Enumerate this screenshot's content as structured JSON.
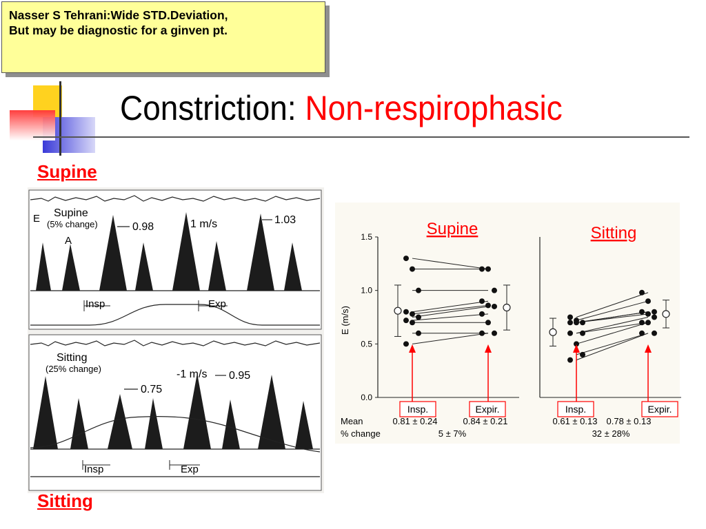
{
  "note": {
    "line1": "Nasser S Tehrani:Wide STD.Deviation,",
    "line2": "But may be diagnostic for a ginven pt."
  },
  "slide": {
    "title_main": "Constriction:",
    "title_accent": "Non-respirophasic",
    "label_top": "Supine",
    "label_bottom": "Sitting",
    "accent_color": "#ff0000"
  },
  "doppler_top": {
    "title": "Supine",
    "subtitle": "(5% change)",
    "wave_e": "E",
    "wave_a": "A",
    "label1": "0.98",
    "label2": "1 m/s",
    "label3": "1.03",
    "insp": "Insp",
    "exp": "Exp"
  },
  "doppler_bottom": {
    "title": "Sitting",
    "subtitle": "(25% change)",
    "label1": "0.75",
    "label2": "-1 m/s",
    "label3": "0.95",
    "insp": "Insp",
    "exp": "Exp"
  },
  "chart_data": {
    "type": "scatter",
    "ylabel": "E (m/s)",
    "ylim": [
      0,
      1.5
    ],
    "yticks": [
      "1.5",
      "1.0",
      "0.5",
      "0.0"
    ],
    "row_labels": [
      "Mean",
      "% change"
    ],
    "panels": [
      {
        "title": "Supine",
        "categories": [
          "Insp.",
          "Expir."
        ],
        "insp": [
          1.3,
          1.2,
          1.0,
          0.8,
          0.78,
          0.75,
          0.72,
          0.7,
          0.6,
          0.5
        ],
        "expir": [
          1.2,
          1.2,
          1.0,
          0.9,
          0.86,
          0.85,
          0.78,
          0.7,
          0.6,
          0.6
        ],
        "mean_sd_insp": [
          0.81,
          0.24
        ],
        "mean_sd_expir": [
          0.84,
          0.21
        ],
        "mean_insp_text": "0.81 ± 0.24",
        "mean_expir_text": "0.84 ± 0.21",
        "pct_change_text": "5 ± 7%"
      },
      {
        "title": "Sitting",
        "categories": [
          "Insp.",
          "Expir."
        ],
        "insp": [
          0.75,
          0.72,
          0.7,
          0.7,
          0.7,
          0.6,
          0.6,
          0.5,
          0.4,
          0.35
        ],
        "expir": [
          0.98,
          0.9,
          0.8,
          0.8,
          0.78,
          0.75,
          0.7,
          0.7,
          0.6,
          0.6
        ],
        "mean_sd_insp": [
          0.61,
          0.13
        ],
        "mean_sd_expir": [
          0.78,
          0.13
        ],
        "mean_insp_text": "0.61 ± 0.13",
        "mean_expir_text": "0.78 ± 0.13",
        "pct_change_text": "32 ± 28%"
      }
    ]
  }
}
